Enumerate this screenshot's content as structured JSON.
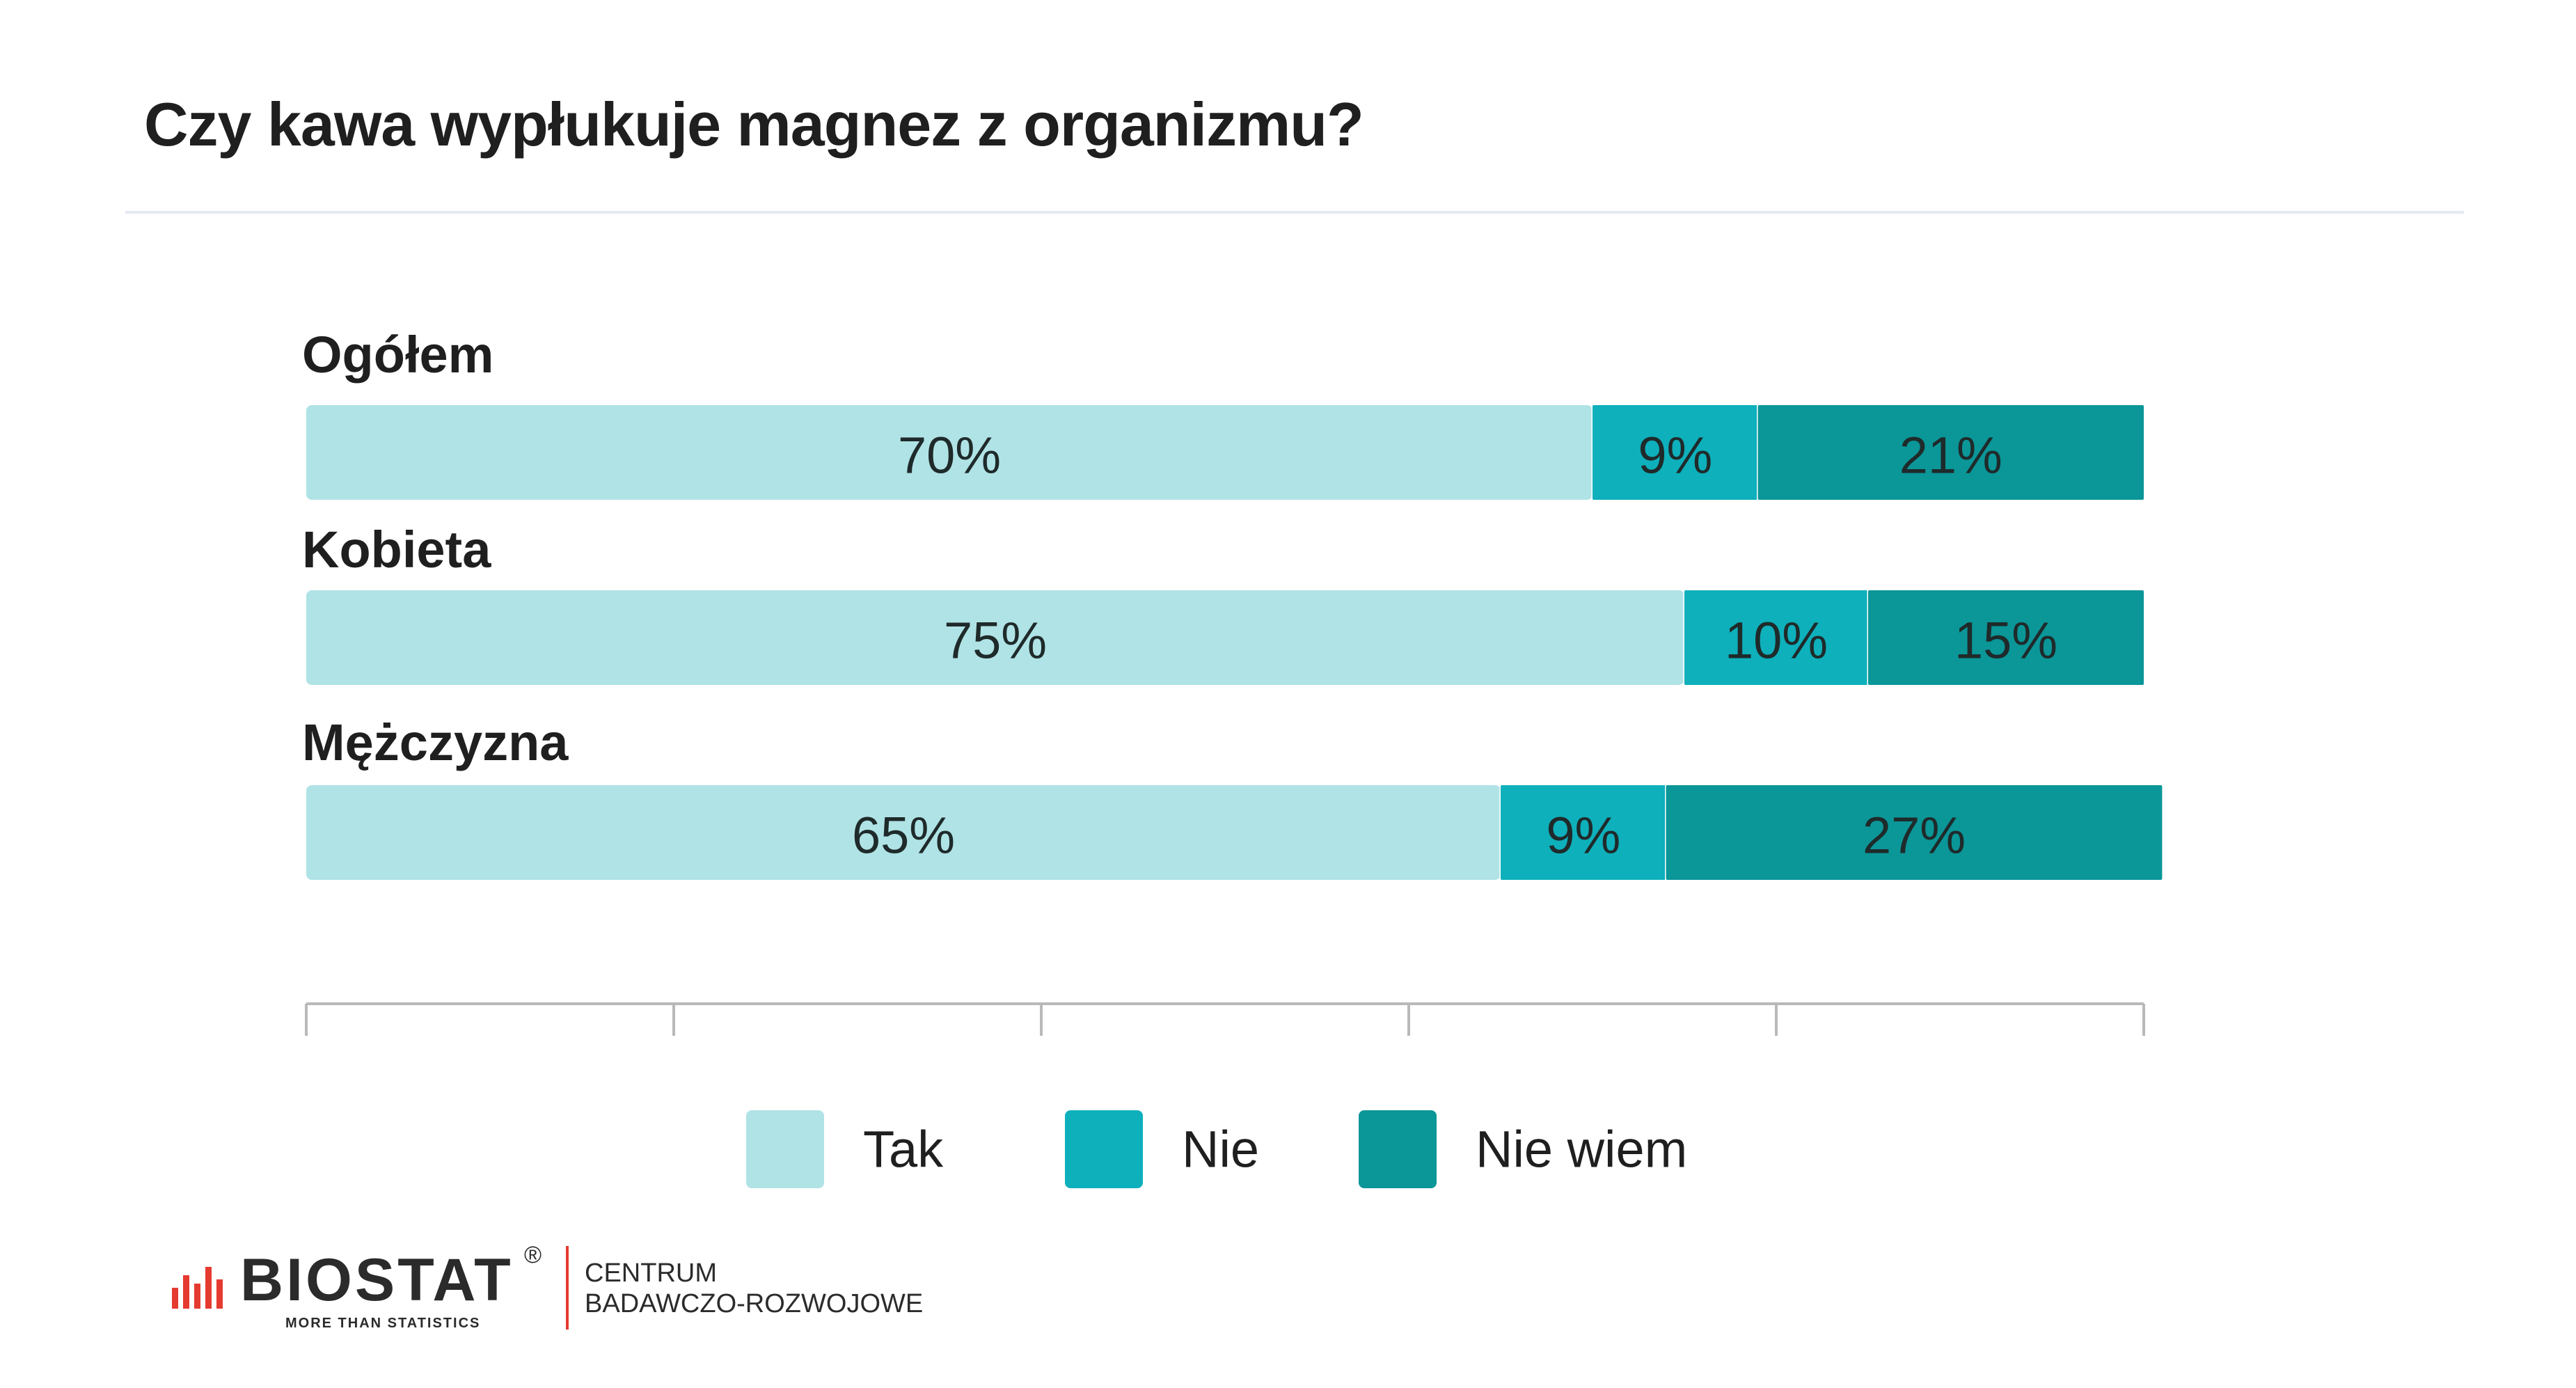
{
  "title": "Czy kawa wypłukuje magnez z organizmu?",
  "chart_data": {
    "type": "bar",
    "orientation": "horizontal",
    "stacked": true,
    "categories": [
      "Ogółem",
      "Kobieta",
      "Mężczyzna"
    ],
    "series": [
      {
        "name": "Tak",
        "values": [
          70,
          75,
          65
        ],
        "labels": [
          "70%",
          "75%",
          "65%"
        ],
        "color": "#b0e3e6"
      },
      {
        "name": "Nie",
        "values": [
          9,
          10,
          9
        ],
        "labels": [
          "9%",
          "10%",
          "9%"
        ],
        "color": "#0eb0bb"
      },
      {
        "name": "Nie wiem",
        "values": [
          21,
          15,
          27
        ],
        "labels": [
          "21%",
          "15%",
          "27%"
        ],
        "color": "#0b9698"
      }
    ],
    "xlim": [
      0,
      100
    ],
    "legend_position": "bottom",
    "grid": false
  },
  "logo": {
    "brand": "BIOSTAT",
    "registered": "®",
    "tagline": "MORE THAN STATISTICS",
    "center_line1": "CENTRUM",
    "center_line2": "BADAWCZO-ROZWOJOWE",
    "accent_color": "#e53a30"
  }
}
